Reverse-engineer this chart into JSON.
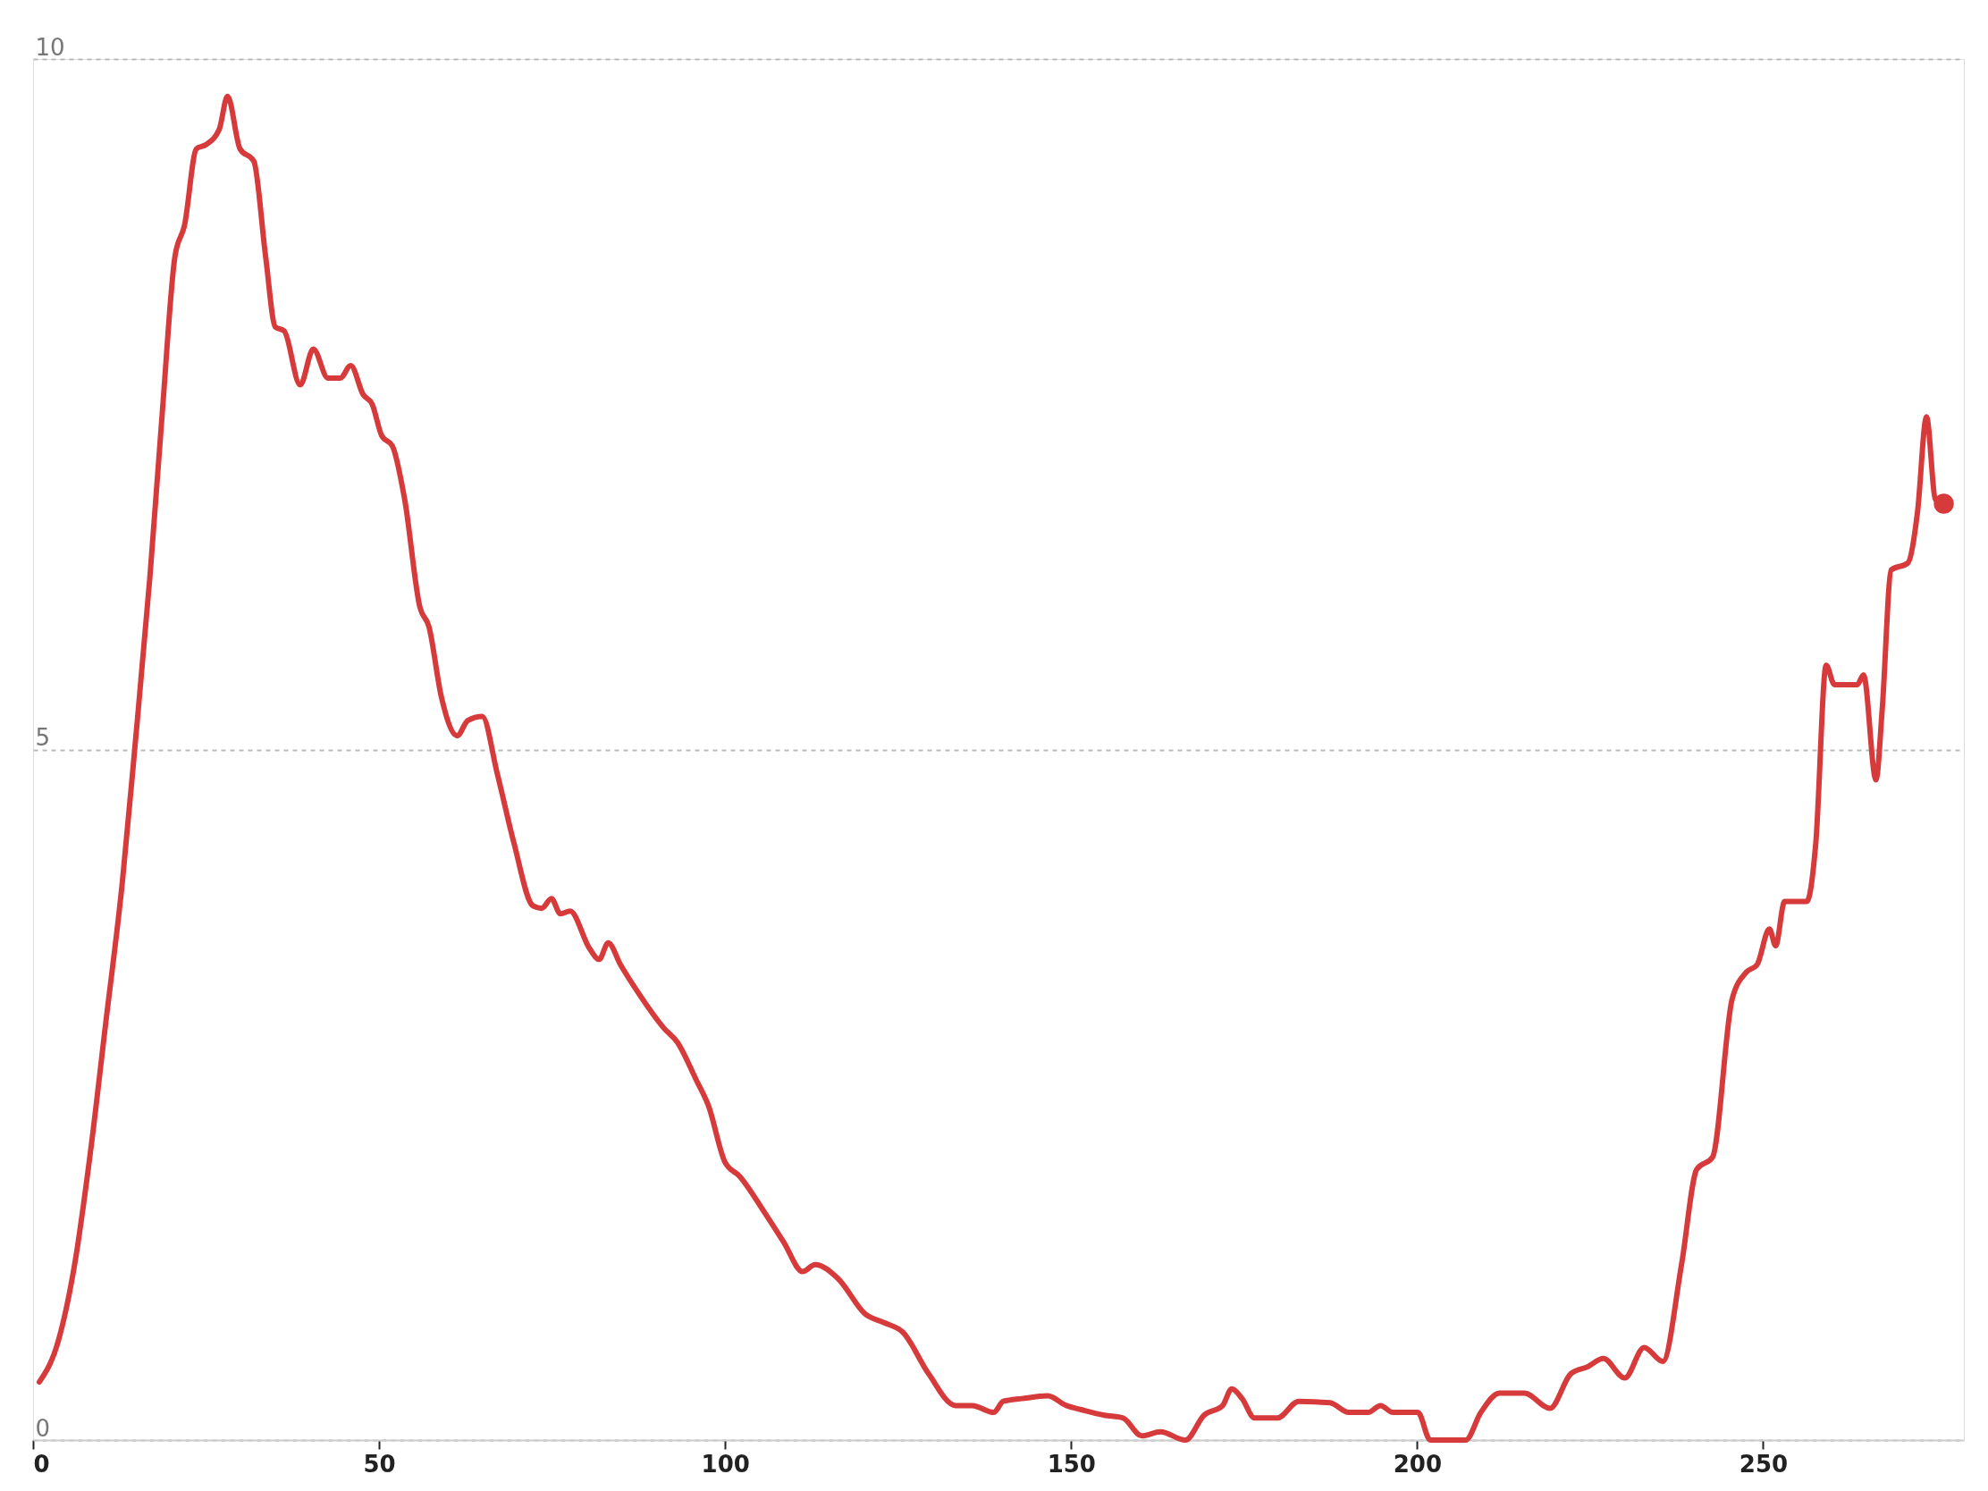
{
  "chart_data": {
    "type": "line",
    "xlim": [
      0,
      279
    ],
    "xticks": [
      0,
      50,
      100,
      150,
      200,
      250
    ],
    "ylim": [
      0,
      10
    ],
    "yticks": [
      0,
      5,
      10
    ],
    "grid": "y",
    "line_style": "solid",
    "marker": "none",
    "series": [
      {
        "color": "#d63a3a",
        "x": [
          0.9,
          3.6,
          6.0,
          8.2,
          10.5,
          12.9,
          14.7,
          16.9,
          18.7,
          20.5,
          21.9,
          23.6,
          25.0,
          26.9,
          28.1,
          29.9,
          31.9,
          33.6,
          35.0,
          36.3,
          38.6,
          40.5,
          42.6,
          44.4,
          45.9,
          47.7,
          49.0,
          50.4,
          51.9,
          53.7,
          55.9,
          57.2,
          59.0,
          61.3,
          62.8,
          64.9,
          67.1,
          69.5,
          72.2,
          73.5,
          74.9,
          76.2,
          77.6,
          80.4,
          81.8,
          83.1,
          84.9,
          87.3,
          91.2,
          93.1,
          95.8,
          97.6,
          100.0,
          102.1,
          105.8,
          108.5,
          111.2,
          113.0,
          116.3,
          120.3,
          123.0,
          125.7,
          129.4,
          133.3,
          135.7,
          138.8,
          140.2,
          142.9,
          146.6,
          149.3,
          151.5,
          154.8,
          157.5,
          160.2,
          162.9,
          166.5,
          169.2,
          171.9,
          173.2,
          174.7,
          176.5,
          179.8,
          182.9,
          187.4,
          190.1,
          192.9,
          194.7,
          196.5,
          200.1,
          201.9,
          207.0,
          209.2,
          211.9,
          215.5,
          219.2,
          222.2,
          224.6,
          226.9,
          230.0,
          232.8,
          235.5,
          238.2,
          240.4,
          242.7,
          245.5,
          247.6,
          249.1,
          250.9,
          251.8,
          253.1,
          256.3,
          257.6,
          259.1,
          260.3,
          263.6,
          264.5,
          266.3,
          267.2,
          268.5,
          270.9,
          272.3,
          273.6,
          274.9,
          276.1
        ],
        "values": [
          0.42,
          0.71,
          1.27,
          2.05,
          3.02,
          4.04,
          5.01,
          6.26,
          7.46,
          8.57,
          8.8,
          9.35,
          9.38,
          9.49,
          9.73,
          9.35,
          9.26,
          8.57,
          8.06,
          8.03,
          7.64,
          7.9,
          7.69,
          7.69,
          7.78,
          7.57,
          7.5,
          7.27,
          7.2,
          6.81,
          6.03,
          5.89,
          5.38,
          5.1,
          5.21,
          5.24,
          4.82,
          4.32,
          3.87,
          3.85,
          3.92,
          3.81,
          3.83,
          3.56,
          3.48,
          3.6,
          3.44,
          3.25,
          2.98,
          2.88,
          2.61,
          2.42,
          2.01,
          1.91,
          1.64,
          1.43,
          1.22,
          1.27,
          1.17,
          0.91,
          0.85,
          0.78,
          0.48,
          0.25,
          0.25,
          0.2,
          0.28,
          0.3,
          0.32,
          0.25,
          0.22,
          0.18,
          0.16,
          0.03,
          0.06,
          0.0,
          0.18,
          0.25,
          0.37,
          0.3,
          0.16,
          0.16,
          0.28,
          0.27,
          0.2,
          0.2,
          0.25,
          0.2,
          0.2,
          0.0,
          0.0,
          0.2,
          0.34,
          0.34,
          0.23,
          0.48,
          0.53,
          0.59,
          0.45,
          0.67,
          0.57,
          1.27,
          1.96,
          2.05,
          3.19,
          3.39,
          3.44,
          3.7,
          3.58,
          3.9,
          3.9,
          4.32,
          5.61,
          5.47,
          5.47,
          5.54,
          4.78,
          5.29,
          6.3,
          6.35,
          6.72,
          7.41,
          6.81,
          6.78
        ]
      },
      {
        "type": "scatter",
        "marker": "circle",
        "color": "#d63a3a",
        "x": [
          276.1
        ],
        "values": [
          6.78
        ]
      }
    ]
  }
}
